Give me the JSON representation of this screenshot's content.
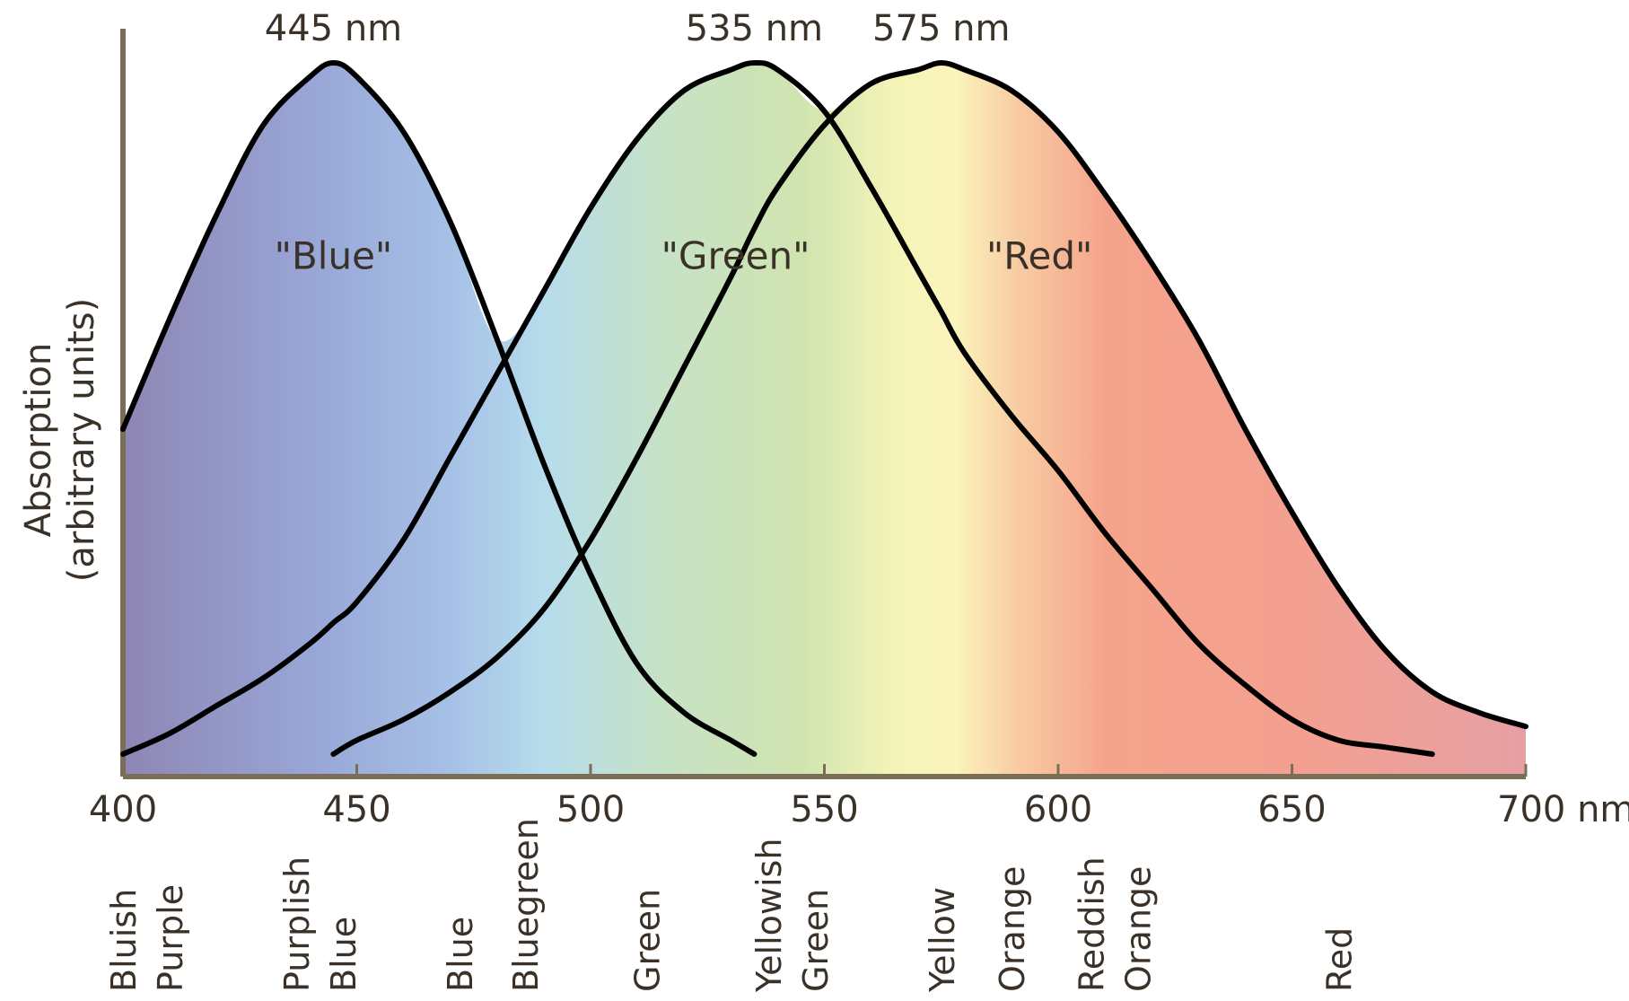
{
  "chart_data": {
    "type": "line",
    "title": "",
    "xlabel": "",
    "ylabel": "Absorption",
    "ylabel_note": "(arbitrary units)",
    "xlim": [
      400,
      700
    ],
    "ylim": [
      0,
      1
    ],
    "x_ticks": [
      "400",
      "450",
      "500",
      "550",
      "600",
      "650",
      "700 nm"
    ],
    "x_tick_values": [
      400,
      450,
      500,
      550,
      600,
      650,
      700
    ],
    "grid": false,
    "legend": "none",
    "x": [
      400,
      410,
      420,
      430,
      440,
      445,
      450,
      460,
      470,
      480,
      490,
      500,
      510,
      520,
      530,
      535,
      540,
      550,
      560,
      570,
      575,
      580,
      590,
      600,
      610,
      620,
      630,
      640,
      650,
      660,
      670,
      680,
      690,
      700
    ],
    "series": [
      {
        "name": "\"Blue\"",
        "peak": 445,
        "peak_label": "445 nm",
        "color": "#000000",
        "values": [
          0.47,
          0.63,
          0.78,
          0.91,
          0.98,
          1.0,
          0.98,
          0.9,
          0.77,
          0.6,
          0.42,
          0.26,
          0.13,
          0.06,
          0.02,
          0.0,
          null,
          null,
          null,
          null,
          null,
          null,
          null,
          null,
          null,
          null,
          null,
          null,
          null,
          null,
          null,
          null,
          null,
          null
        ]
      },
      {
        "name": "\"Green\"",
        "peak": 535,
        "peak_label": "535 nm",
        "color": "#000000",
        "values": [
          0.0,
          0.03,
          0.07,
          0.11,
          0.16,
          0.19,
          0.22,
          0.31,
          0.43,
          0.55,
          0.67,
          0.79,
          0.89,
          0.96,
          0.99,
          1.0,
          0.99,
          0.93,
          0.82,
          0.7,
          0.64,
          0.58,
          0.49,
          0.41,
          0.32,
          0.24,
          0.16,
          0.1,
          0.05,
          0.02,
          0.01,
          0.0,
          null,
          null
        ]
      },
      {
        "name": "\"Red\"",
        "peak": 575,
        "peak_label": "575 nm",
        "color": "#000000",
        "values": [
          null,
          null,
          null,
          null,
          null,
          0.0,
          0.02,
          0.05,
          0.09,
          0.14,
          0.21,
          0.31,
          0.43,
          0.56,
          0.69,
          0.76,
          0.82,
          0.91,
          0.97,
          0.99,
          1.0,
          0.99,
          0.96,
          0.9,
          0.81,
          0.71,
          0.6,
          0.47,
          0.35,
          0.24,
          0.15,
          0.09,
          0.06,
          0.04
        ]
      }
    ],
    "color_names": [
      {
        "lines": [
          "Bluish",
          "Purple"
        ],
        "nm": 405
      },
      {
        "lines": [
          "Purplish",
          "Blue"
        ],
        "nm": 442
      },
      {
        "lines": [
          "Blue"
        ],
        "nm": 472
      },
      {
        "lines": [
          "Bluegreen"
        ],
        "nm": 486
      },
      {
        "lines": [
          "Green"
        ],
        "nm": 512
      },
      {
        "lines": [
          "Yellowish",
          "Green"
        ],
        "nm": 543
      },
      {
        "lines": [
          "Yellow"
        ],
        "nm": 575
      },
      {
        "lines": [
          "Orange"
        ],
        "nm": 590
      },
      {
        "lines": [
          "Reddish",
          "Orange"
        ],
        "nm": 612
      },
      {
        "lines": [
          "Red"
        ],
        "nm": 660
      }
    ],
    "spectrum_colors": [
      {
        "nm": 400,
        "color": "#8e86b4"
      },
      {
        "nm": 440,
        "color": "#98a6d6"
      },
      {
        "nm": 470,
        "color": "#a6c0e6"
      },
      {
        "nm": 490,
        "color": "#b6dcec"
      },
      {
        "nm": 515,
        "color": "#c6e2c6"
      },
      {
        "nm": 545,
        "color": "#d0e4b0"
      },
      {
        "nm": 565,
        "color": "#f4f4b8"
      },
      {
        "nm": 578,
        "color": "#fbf4bc"
      },
      {
        "nm": 592,
        "color": "#f8caa2"
      },
      {
        "nm": 610,
        "color": "#f5a48c"
      },
      {
        "nm": 650,
        "color": "#f4a090"
      },
      {
        "nm": 700,
        "color": "#e6a0a4"
      }
    ],
    "axis_color": "#7a6e58"
  }
}
